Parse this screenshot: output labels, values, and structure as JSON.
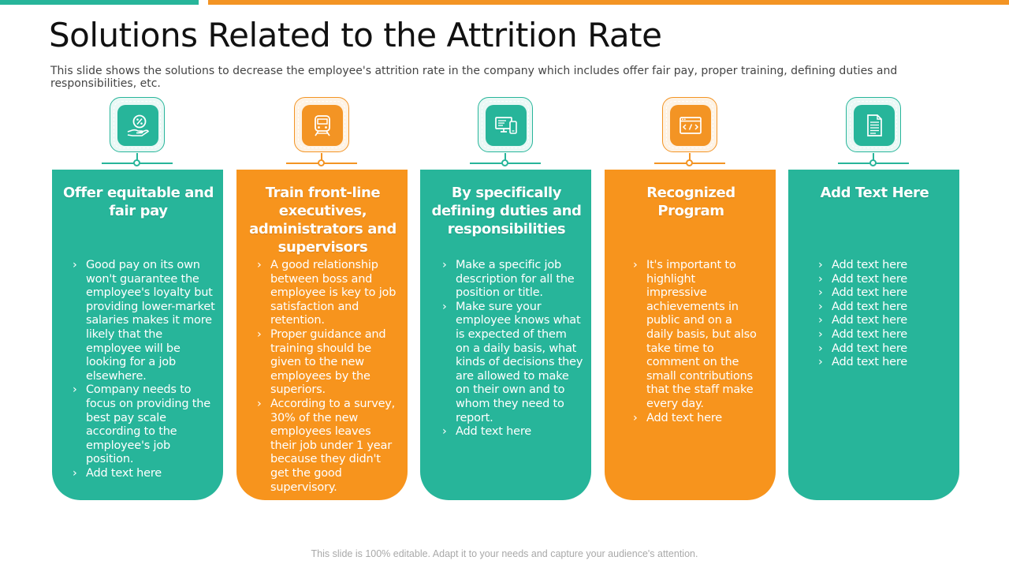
{
  "slide": {
    "title": "Solutions Related to the Attrition Rate",
    "subtitle": "This slide shows the solutions to decrease the employee's attrition rate in the company which includes offer fair pay, proper training, defining duties and responsibilities, etc.",
    "footer": "This slide is 100% editable. Adapt it to your needs and capture your audience's attention."
  },
  "colors": {
    "teal": "#27b59a",
    "orange": "#f7941d"
  },
  "cards": [
    {
      "title": "Offer equitable and fair pay",
      "icon": "percent-hand-icon",
      "bullets": [
        "Good pay on its own won't guarantee the employee's loyalty but providing lower-market salaries makes it more likely that the employee will be looking for a job elsewhere.",
        "Company needs to focus on providing the best pay scale according to the employee's job position.",
        "Add text here"
      ]
    },
    {
      "title": "Train front-line executives, administrators and supervisors",
      "icon": "train-icon",
      "bullets": [
        "A good relationship between boss and employee is key to job satisfaction and retention.",
        "Proper guidance and training should be given to the new employees by the superiors.",
        "According to a survey, 30% of the new employees leaves their job under 1 year because they didn't get the good supervisory."
      ]
    },
    {
      "title": "By specifically defining duties and responsibilities",
      "icon": "devices-icon",
      "bullets": [
        "Make a specific job description for all the position or title.",
        "Make sure your employee knows what is expected of them on a daily basis, what kinds of decisions they are allowed to make on their own and to whom they need to report.",
        "Add text here"
      ]
    },
    {
      "title": "Recognized Program",
      "icon": "code-window-icon",
      "bullets": [
        "It's important to highlight impressive achievements in public and on a daily basis, but also take time to comment on the small contributions that the staff make every day.",
        "Add text here"
      ]
    },
    {
      "title": "Add Text Here",
      "icon": "document-icon",
      "bullets": [
        "Add text here",
        "Add text here",
        "Add text here",
        "Add text here",
        "Add text here",
        "Add text here",
        "Add text here",
        "Add text here"
      ]
    }
  ]
}
